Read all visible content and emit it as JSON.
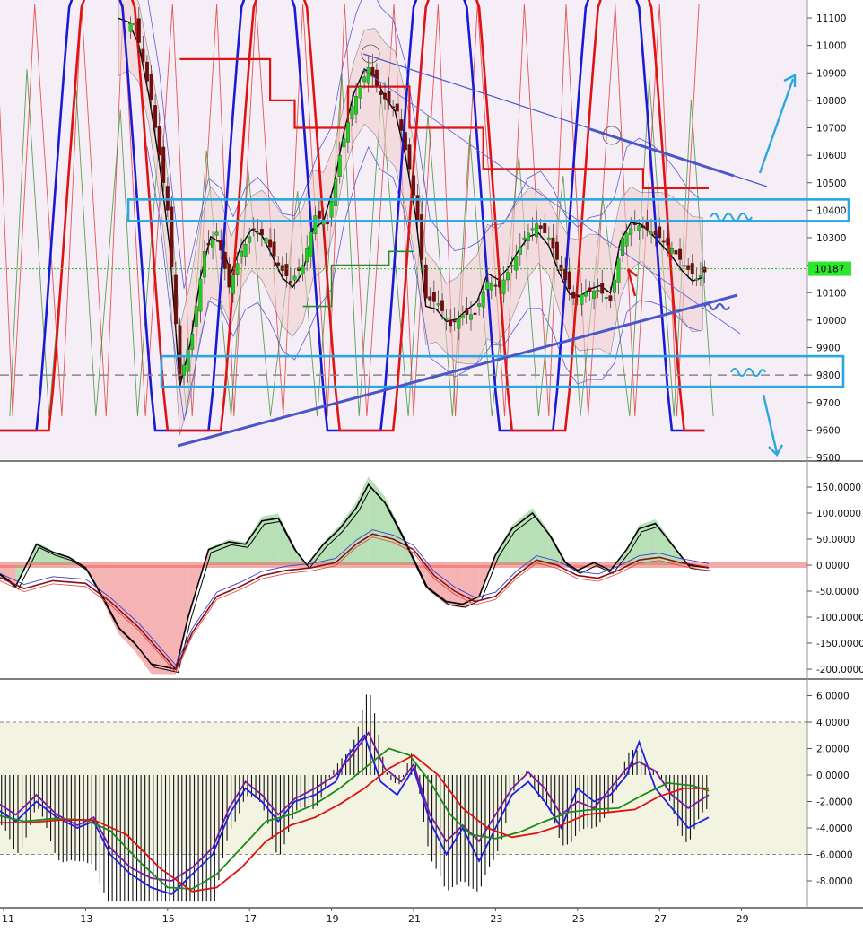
{
  "colors": {
    "price_bg": "#f5eef6",
    "lower_bg": "#f3f3e2",
    "up_candle": "#1fd11f",
    "down_candle": "#7a0a0a",
    "zone_box": "#2aa7df",
    "trendline": "#4a57c9",
    "arrow": "#2aa7df",
    "last_price_bg": "#2ee62e",
    "stoch_blue": "#1a1ad6",
    "stoch_red": "#e01212",
    "green_osc": "#3a8a2a"
  },
  "price_axis": {
    "ticks": [
      "11100",
      "11000",
      "10900",
      "10800",
      "10700",
      "10600",
      "10500",
      "10400",
      "10300",
      "10200",
      "10100",
      "10000",
      "9900",
      "9800",
      "9700",
      "9600",
      "9500"
    ]
  },
  "last_price": "10187",
  "mid_axis": {
    "ticks": [
      "150.0000",
      "100.0000",
      "50.0000",
      "0.0000",
      "-50.0000",
      "-100.0000",
      "-150.0000",
      "-200.0000"
    ]
  },
  "low_axis": {
    "ticks": [
      "6.0000",
      "4.0000",
      "2.0000",
      "0.0000",
      "-2.0000",
      "-4.0000",
      "-6.0000",
      "-8.0000"
    ]
  },
  "date_axis": {
    "labels": [
      "11",
      "13",
      "15",
      "17",
      "19",
      "21",
      "23",
      "25",
      "27",
      "29"
    ]
  },
  "chart_data": [
    {
      "type": "candlestick",
      "x_unit": "day",
      "y_range": [
        9500,
        11100
      ],
      "levels": [
        10400,
        9800
      ],
      "last": 10187,
      "close_path": [
        [
          14.2,
          11080
        ],
        [
          14.6,
          10800
        ],
        [
          15.0,
          10400
        ],
        [
          15.3,
          9780
        ],
        [
          15.6,
          9950
        ],
        [
          15.9,
          10250
        ],
        [
          16.2,
          10320
        ],
        [
          16.5,
          10120
        ],
        [
          16.8,
          10250
        ],
        [
          17.1,
          10330
        ],
        [
          17.4,
          10300
        ],
        [
          17.7,
          10200
        ],
        [
          18.0,
          10140
        ],
        [
          18.3,
          10200
        ],
        [
          18.6,
          10380
        ],
        [
          18.9,
          10350
        ],
        [
          19.2,
          10600
        ],
        [
          19.5,
          10780
        ],
        [
          19.9,
          10920
        ],
        [
          20.2,
          10820
        ],
        [
          20.6,
          10760
        ],
        [
          20.9,
          10550
        ],
        [
          21.1,
          10360
        ],
        [
          21.3,
          10080
        ],
        [
          21.6,
          10060
        ],
        [
          21.9,
          9980
        ],
        [
          22.2,
          10020
        ],
        [
          22.5,
          10020
        ],
        [
          22.8,
          10140
        ],
        [
          23.1,
          10120
        ],
        [
          23.4,
          10200
        ],
        [
          23.7,
          10300
        ],
        [
          24.0,
          10350
        ],
        [
          24.3,
          10300
        ],
        [
          24.6,
          10180
        ],
        [
          24.9,
          10080
        ],
        [
          25.2,
          10100
        ],
        [
          25.5,
          10110
        ],
        [
          25.8,
          10070
        ],
        [
          26.1,
          10300
        ],
        [
          26.4,
          10350
        ],
        [
          26.7,
          10330
        ],
        [
          27.0,
          10300
        ],
        [
          27.3,
          10260
        ],
        [
          27.6,
          10200
        ],
        [
          27.9,
          10150
        ],
        [
          28.2,
          10187
        ]
      ]
    },
    {
      "type": "line",
      "y_range": [
        -210,
        180
      ],
      "series": [
        {
          "values": [
            [
              10.8,
              -10
            ],
            [
              11.3,
              -40
            ],
            [
              11.8,
              40
            ],
            [
              12.2,
              25
            ],
            [
              12.6,
              15
            ],
            [
              13.0,
              -5
            ],
            [
              13.4,
              -60
            ],
            [
              13.8,
              -120
            ],
            [
              14.2,
              -150
            ],
            [
              14.6,
              -190
            ],
            [
              15.2,
              -200
            ],
            [
              15.5,
              -100
            ],
            [
              16.0,
              30
            ],
            [
              16.5,
              45
            ],
            [
              16.9,
              40
            ],
            [
              17.3,
              85
            ],
            [
              17.7,
              90
            ],
            [
              18.1,
              30
            ],
            [
              18.4,
              0
            ],
            [
              18.8,
              40
            ],
            [
              19.2,
              70
            ],
            [
              19.6,
              110
            ],
            [
              19.9,
              155
            ],
            [
              20.3,
              120
            ],
            [
              20.7,
              60
            ],
            [
              21.0,
              10
            ],
            [
              21.3,
              -40
            ],
            [
              21.8,
              -70
            ],
            [
              22.2,
              -75
            ],
            [
              22.6,
              -60
            ],
            [
              23.0,
              20
            ],
            [
              23.4,
              70
            ],
            [
              23.9,
              100
            ],
            [
              24.3,
              60
            ],
            [
              24.7,
              5
            ],
            [
              25.0,
              -10
            ],
            [
              25.4,
              5
            ],
            [
              25.8,
              -10
            ],
            [
              26.2,
              30
            ],
            [
              26.5,
              70
            ],
            [
              26.9,
              80
            ],
            [
              27.3,
              40
            ],
            [
              27.7,
              0
            ],
            [
              28.2,
              -5
            ]
          ]
        },
        {
          "values": [
            [
              10.8,
              -20
            ],
            [
              11.5,
              -45
            ],
            [
              12.2,
              -30
            ],
            [
              13.0,
              -35
            ],
            [
              13.6,
              -70
            ],
            [
              14.3,
              -120
            ],
            [
              15.2,
              -200
            ],
            [
              15.6,
              -130
            ],
            [
              16.2,
              -60
            ],
            [
              16.8,
              -40
            ],
            [
              17.3,
              -20
            ],
            [
              17.9,
              -10
            ],
            [
              18.5,
              -5
            ],
            [
              19.1,
              5
            ],
            [
              19.6,
              40
            ],
            [
              20.0,
              60
            ],
            [
              20.5,
              50
            ],
            [
              21.0,
              30
            ],
            [
              21.5,
              -20
            ],
            [
              22.0,
              -50
            ],
            [
              22.5,
              -70
            ],
            [
              23.0,
              -60
            ],
            [
              23.5,
              -20
            ],
            [
              24.0,
              10
            ],
            [
              24.5,
              0
            ],
            [
              25.0,
              -20
            ],
            [
              25.5,
              -25
            ],
            [
              26.0,
              -10
            ],
            [
              26.5,
              10
            ],
            [
              27.0,
              15
            ],
            [
              27.5,
              5
            ],
            [
              28.2,
              -5
            ]
          ]
        }
      ]
    },
    {
      "type": "line",
      "y_range": [
        -9.5,
        7
      ],
      "levels": [
        4,
        -6
      ],
      "series": [
        {
          "values": [
            [
              10.8,
              -2.5
            ],
            [
              11.3,
              -3.5
            ],
            [
              11.8,
              -2
            ],
            [
              12.3,
              -3.2
            ],
            [
              12.8,
              -4
            ],
            [
              13.2,
              -3.5
            ],
            [
              13.6,
              -6
            ],
            [
              14.1,
              -7.5
            ],
            [
              14.6,
              -8.5
            ],
            [
              15.1,
              -9
            ],
            [
              15.6,
              -7.5
            ],
            [
              16.1,
              -6
            ],
            [
              16.5,
              -3
            ],
            [
              16.9,
              -1
            ],
            [
              17.3,
              -2
            ],
            [
              17.7,
              -3.5
            ],
            [
              18.1,
              -2
            ],
            [
              18.6,
              -1.5
            ],
            [
              19.1,
              -0.5
            ],
            [
              19.4,
              1.5
            ],
            [
              19.8,
              3
            ],
            [
              20.2,
              -0.5
            ],
            [
              20.6,
              -1.5
            ],
            [
              21.0,
              0.5
            ],
            [
              21.4,
              -3.5
            ],
            [
              21.8,
              -6
            ],
            [
              22.2,
              -4
            ],
            [
              22.6,
              -6.5
            ],
            [
              23.0,
              -4
            ],
            [
              23.4,
              -1.5
            ],
            [
              23.8,
              -0.5
            ],
            [
              24.2,
              -2
            ],
            [
              24.6,
              -4
            ],
            [
              25.0,
              -1
            ],
            [
              25.4,
              -2
            ],
            [
              25.8,
              -1.5
            ],
            [
              26.2,
              0
            ],
            [
              26.5,
              2.5
            ],
            [
              26.9,
              -1
            ],
            [
              27.3,
              -2.5
            ],
            [
              27.7,
              -4
            ],
            [
              28.2,
              -3.2
            ]
          ]
        },
        {
          "values": [
            [
              10.8,
              -2
            ],
            [
              11.3,
              -3
            ],
            [
              11.8,
              -1.5
            ],
            [
              12.3,
              -3
            ],
            [
              12.8,
              -3.8
            ],
            [
              13.2,
              -3.2
            ],
            [
              13.6,
              -5.5
            ],
            [
              14.1,
              -7
            ],
            [
              14.6,
              -7.8
            ],
            [
              15.1,
              -8
            ],
            [
              15.6,
              -7
            ],
            [
              16.1,
              -5.5
            ],
            [
              16.5,
              -2.5
            ],
            [
              16.9,
              -0.5
            ],
            [
              17.3,
              -1.5
            ],
            [
              17.7,
              -3
            ],
            [
              18.1,
              -1.8
            ],
            [
              18.6,
              -1
            ],
            [
              19.1,
              0
            ],
            [
              19.5,
              1.5
            ],
            [
              19.9,
              3.2
            ],
            [
              20.3,
              0.5
            ],
            [
              20.7,
              -0.5
            ],
            [
              21.0,
              0.8
            ],
            [
              21.4,
              -3
            ],
            [
              21.8,
              -5
            ],
            [
              22.2,
              -3.8
            ],
            [
              22.6,
              -5
            ],
            [
              23.0,
              -3
            ],
            [
              23.4,
              -1
            ],
            [
              23.8,
              0.2
            ],
            [
              24.2,
              -1
            ],
            [
              24.6,
              -3
            ],
            [
              25.0,
              -2
            ],
            [
              25.4,
              -2.5
            ],
            [
              25.8,
              -1
            ],
            [
              26.2,
              0.5
            ],
            [
              26.5,
              1
            ],
            [
              26.9,
              0.3
            ],
            [
              27.3,
              -1.5
            ],
            [
              27.7,
              -2.5
            ],
            [
              28.2,
              -1.5
            ]
          ]
        },
        {
          "values": [
            [
              10.8,
              -3
            ],
            [
              11.5,
              -3.5
            ],
            [
              12.2,
              -3.3
            ],
            [
              13.0,
              -3.4
            ],
            [
              13.6,
              -4.2
            ],
            [
              14.3,
              -6.5
            ],
            [
              15.0,
              -8.5
            ],
            [
              15.6,
              -8.6
            ],
            [
              16.2,
              -7.5
            ],
            [
              16.8,
              -5.5
            ],
            [
              17.4,
              -3.5
            ],
            [
              18.0,
              -3
            ],
            [
              18.6,
              -2.2
            ],
            [
              19.2,
              -1
            ],
            [
              19.8,
              0.5
            ],
            [
              20.4,
              2
            ],
            [
              20.9,
              1.5
            ],
            [
              21.4,
              -0.5
            ],
            [
              21.9,
              -3
            ],
            [
              22.4,
              -4.5
            ],
            [
              23.0,
              -4.8
            ],
            [
              23.6,
              -4.3
            ],
            [
              24.2,
              -3.5
            ],
            [
              24.8,
              -2.8
            ],
            [
              25.4,
              -2.6
            ],
            [
              26.0,
              -2.5
            ],
            [
              26.6,
              -1.5
            ],
            [
              27.2,
              -0.6
            ],
            [
              27.8,
              -0.8
            ],
            [
              28.2,
              -1.2
            ]
          ]
        },
        {
          "values": [
            [
              10.8,
              -3.6
            ],
            [
              11.6,
              -3.6
            ],
            [
              12.4,
              -3.4
            ],
            [
              13.2,
              -3.4
            ],
            [
              14.0,
              -4.5
            ],
            [
              14.8,
              -7
            ],
            [
              15.6,
              -8.8
            ],
            [
              16.2,
              -8.5
            ],
            [
              16.8,
              -7
            ],
            [
              17.4,
              -5
            ],
            [
              18.0,
              -3.8
            ],
            [
              18.6,
              -3.2
            ],
            [
              19.2,
              -2.2
            ],
            [
              19.8,
              -1
            ],
            [
              20.4,
              0.5
            ],
            [
              21.0,
              1.5
            ],
            [
              21.6,
              0
            ],
            [
              22.2,
              -2.5
            ],
            [
              22.8,
              -4
            ],
            [
              23.4,
              -4.7
            ],
            [
              24.0,
              -4.4
            ],
            [
              24.6,
              -3.8
            ],
            [
              25.2,
              -3
            ],
            [
              25.8,
              -2.8
            ],
            [
              26.4,
              -2.6
            ],
            [
              27.0,
              -1.6
            ],
            [
              27.6,
              -1
            ],
            [
              28.2,
              -1
            ]
          ]
        }
      ]
    }
  ]
}
